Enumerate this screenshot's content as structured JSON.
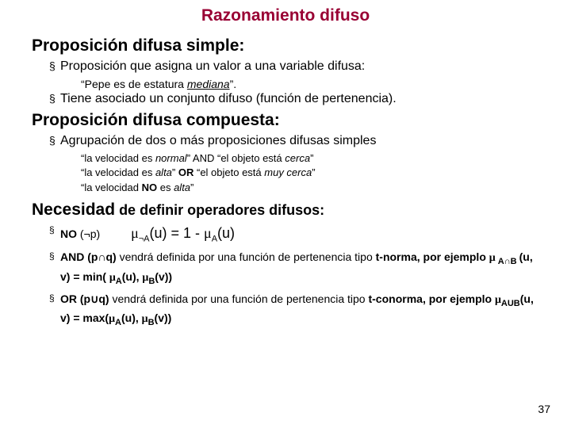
{
  "title": "Razonamiento difuso",
  "section1": {
    "heading": "Proposición difusa simple:",
    "b1": "Proposición que asigna un valor a una variable difusa:",
    "quote_pre": "“Pepe es de estatura ",
    "quote_word": "mediana",
    "quote_post": "”.",
    "b2": "Tiene asociado un conjunto difuso (función de pertenencia)."
  },
  "section2": {
    "heading": "Proposición difusa compuesta:",
    "b1": "Agrupación de dos o más proposiciones difusas simples",
    "ex1_a": "“la velocidad es ",
    "ex1_b": "normal",
    "ex1_c": "” AND “el objeto está ",
    "ex1_d": "cerca",
    "ex1_e": "”",
    "ex2_a": "“la velocidad es ",
    "ex2_b": "alta",
    "ex2_c": "” ",
    "ex2_d": "OR",
    "ex2_e": " “el objeto está ",
    "ex2_f": "muy cerca",
    "ex2_g": "”",
    "ex3_a": "“la velocidad ",
    "ex3_b": "NO",
    "ex3_c": " es ",
    "ex3_d": "alta",
    "ex3_e": "”"
  },
  "section3": {
    "heading_a": "Necesidad",
    "heading_b": " de definir operadores difusos:",
    "no_label_a": "NO",
    "no_label_b": " (¬p)",
    "no_formula_a": "¬A",
    "no_formula_b": "(u) = 1 - ",
    "no_formula_c": "A",
    "no_formula_d": "(u)",
    "and_a": "AND (p",
    "and_b": "q)",
    "and_c": " vendrá definida por una función de pertenencia tipo ",
    "and_d": "t-norma",
    "and_e": ", por ejemplo ",
    "and_f": " A",
    "and_g": "B ",
    "and_h": "(u, v) = min( ",
    "and_i": "A",
    "and_j": "(u), ",
    "and_k": "B",
    "and_l": "(v))",
    "or_a": "OR (p",
    "or_b": "q)",
    "or_c": " vendrá definida por una función de pertenencia tipo ",
    "or_d": "t-conorma",
    "or_e": ", por ejemplo ",
    "or_f": "AUB",
    "or_g": "(u, v) = max(",
    "or_h": "A",
    "or_i": "(u), ",
    "or_j": "B",
    "or_k": "(v))"
  },
  "page": "37",
  "glyphs": {
    "mu": "μ",
    "cap": "∩",
    "cup": "∪"
  }
}
